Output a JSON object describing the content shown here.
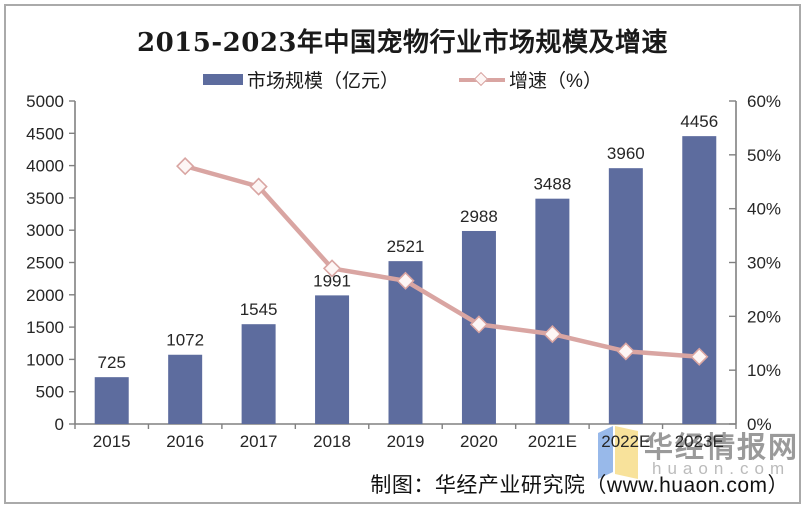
{
  "page": {
    "border_color": "#aaaaaa",
    "background": "#ffffff"
  },
  "title": {
    "text": "2015-2023年中国宠物行业市场规模及增速"
  },
  "legend": {
    "items": [
      {
        "label": "市场规模（亿元）",
        "marker": "bar-swatch",
        "color": "#5d6c9e"
      },
      {
        "label": "增速（%）",
        "marker": "line-diamond-swatch",
        "color": "#d9a5a2"
      }
    ]
  },
  "chart_data": {
    "type": "bar",
    "subtype": "bar+line combo, dual axis",
    "title": "2015-2023年中国宠物行业市场规模及增速",
    "categories": [
      "2015",
      "2016",
      "2017",
      "2018",
      "2019",
      "2020",
      "2021E",
      "2022E",
      "2023E"
    ],
    "series": [
      {
        "name": "市场规模（亿元）",
        "type": "bar",
        "axis": "left",
        "color": "#5d6c9e",
        "values": [
          725,
          1072,
          1545,
          1991,
          2521,
          2988,
          3488,
          3960,
          4456
        ],
        "data_labels": true
      },
      {
        "name": "增速（%）",
        "type": "line",
        "axis": "right",
        "color": "#d9a5a2",
        "marker": "diamond",
        "marker_fill": "#fdf6f5",
        "values": [
          null,
          47.9,
          44.1,
          28.9,
          26.6,
          18.5,
          16.7,
          13.5,
          12.5
        ],
        "data_labels": false
      }
    ],
    "left_axis": {
      "min": 0,
      "max": 5000,
      "step": 500,
      "suffix": ""
    },
    "right_axis": {
      "min": 0,
      "max": 60,
      "step": 10,
      "suffix": "%"
    },
    "grid": false,
    "legend_position": "top",
    "axis_color": "#808080",
    "label_color": "#262626"
  },
  "caption": {
    "text": "制图：华经产业研究院（www.huaon.com）"
  },
  "watermark": {
    "brand": "华经情报网",
    "domain": "huaon.com",
    "logo_blue": "#8db1e8",
    "logo_yellow": "#f7df90"
  }
}
